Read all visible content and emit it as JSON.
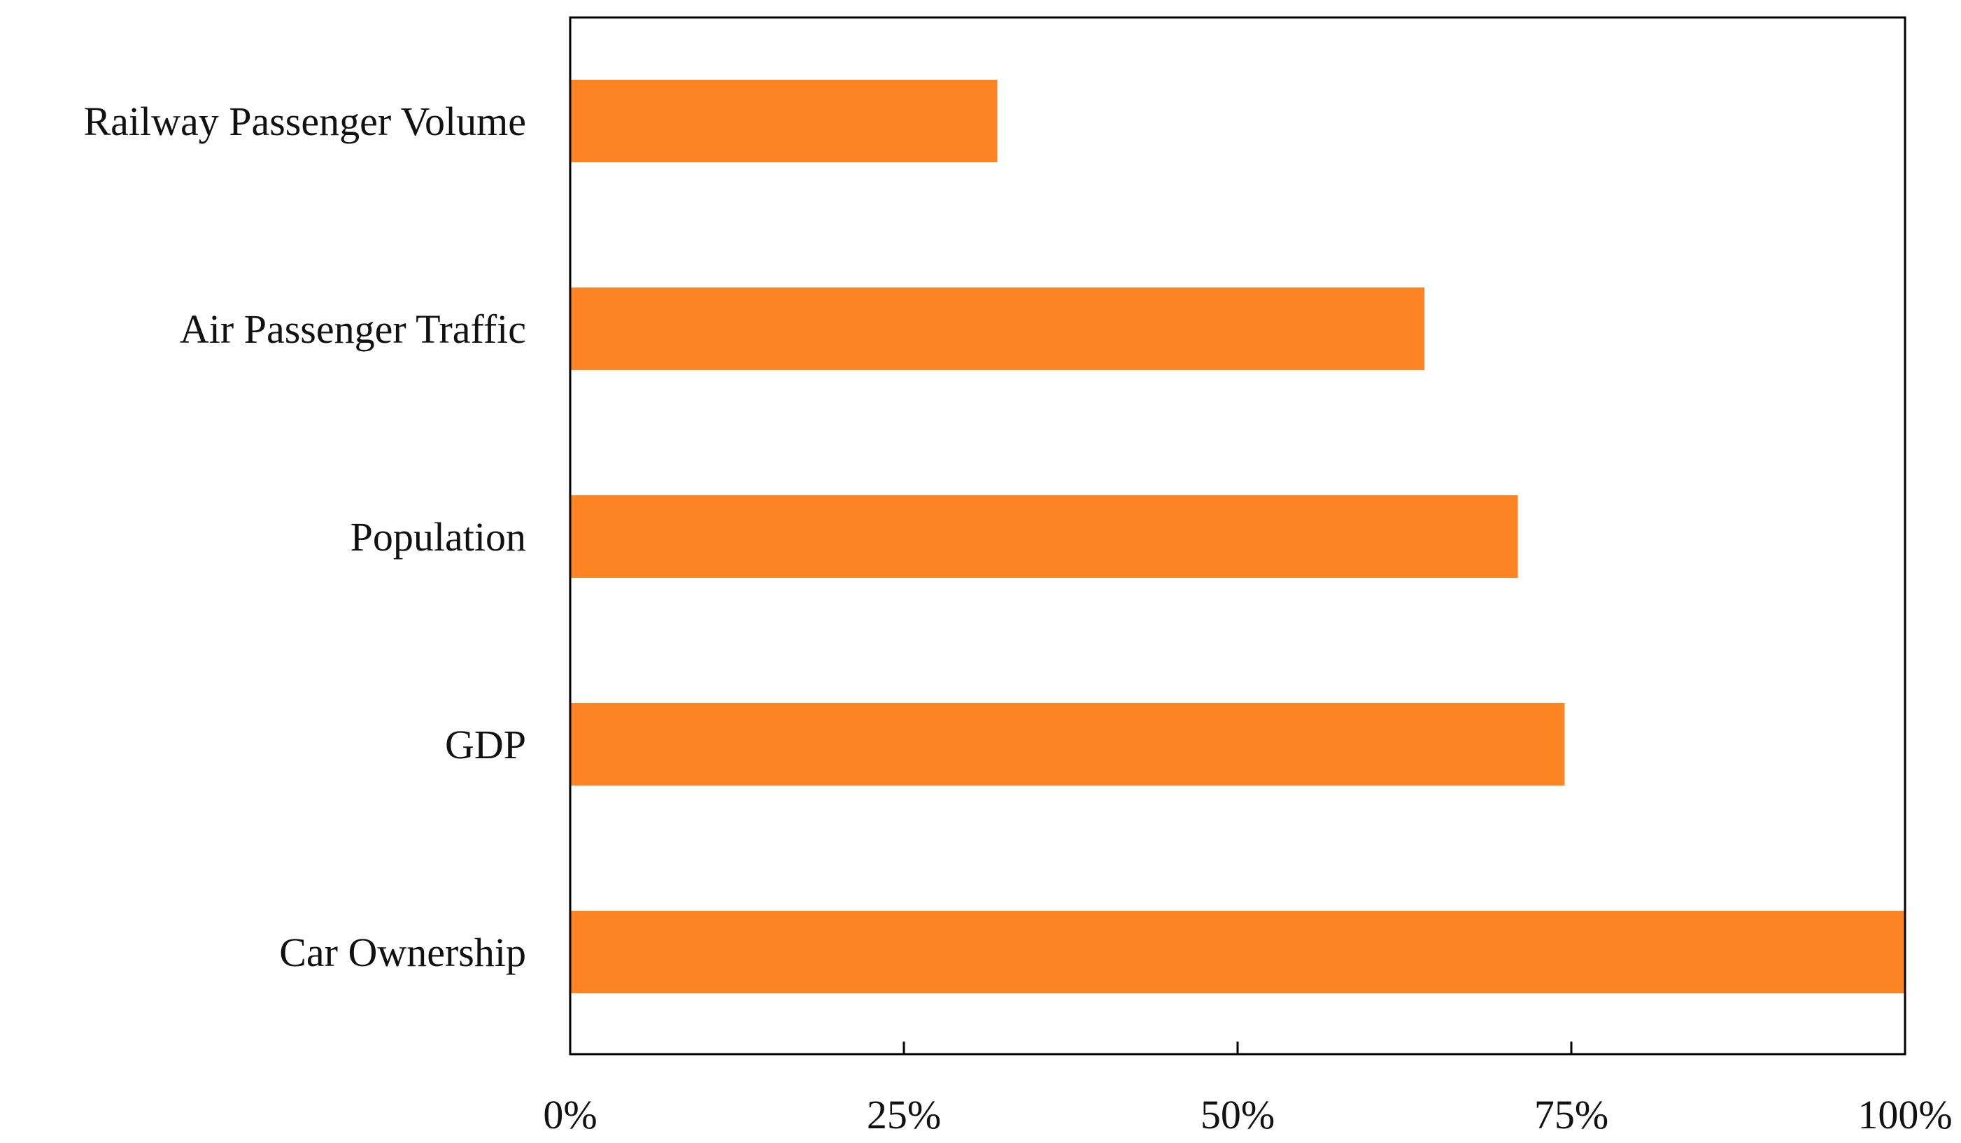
{
  "chart_data": {
    "type": "bar",
    "orientation": "horizontal",
    "title": "",
    "xlabel": "",
    "ylabel": "",
    "categories": [
      "Railway Passenger Volume",
      "Air Passenger Traffic",
      "Population",
      "GDP",
      "Car Ownership"
    ],
    "values": [
      32,
      64,
      71,
      74.5,
      100
    ],
    "xlim": [
      0,
      100
    ],
    "xticks": [
      0,
      25,
      50,
      75,
      100
    ],
    "xtick_labels": [
      "0%",
      "25%",
      "50%",
      "75%",
      "100%"
    ],
    "bar_color": "#FF8424",
    "grid": false,
    "legend": false
  }
}
